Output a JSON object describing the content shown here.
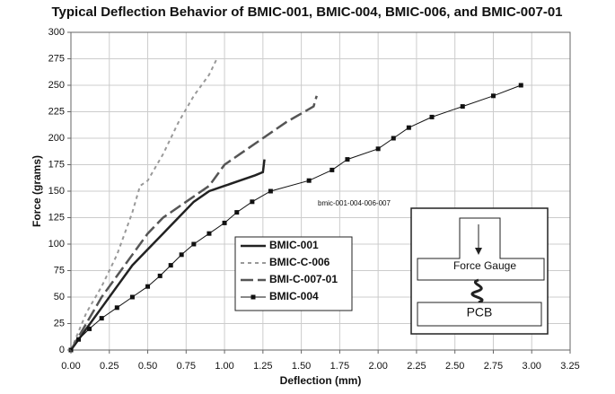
{
  "chart_data": {
    "type": "line",
    "title": "Typical Deflection Behavior of BMIC-001, BMIC-004, BMIC-006, and BMIC-007-01",
    "x_label": "Deflection (mm)",
    "y_label": "Force (grams)",
    "xlim": [
      0,
      3.25
    ],
    "ylim": [
      0,
      300
    ],
    "xticks": [
      {
        "value": 0,
        "label": "0.00"
      },
      {
        "value": 0.25,
        "label": "0.25"
      },
      {
        "value": 0.5,
        "label": "0.50"
      },
      {
        "value": 0.75,
        "label": "0.75"
      },
      {
        "value": 1,
        "label": "1.00"
      },
      {
        "value": 1.25,
        "label": "1.25"
      },
      {
        "value": 1.5,
        "label": "1.50"
      },
      {
        "value": 1.75,
        "label": "1.75"
      },
      {
        "value": 2,
        "label": "2.00"
      },
      {
        "value": 2.25,
        "label": "2.25"
      },
      {
        "value": 2.5,
        "label": "2.50"
      },
      {
        "value": 2.75,
        "label": "2.75"
      },
      {
        "value": 3,
        "label": "3.00"
      },
      {
        "value": 3.25,
        "label": "3.25"
      }
    ],
    "yticks": [
      0,
      25,
      50,
      75,
      100,
      125,
      150,
      175,
      200,
      225,
      250,
      275,
      300
    ],
    "grid": true,
    "annotation": "bmic-001-004-006-007",
    "inset_labels": [
      "Force Gauge",
      "PCB"
    ],
    "series": [
      {
        "name": "BMIC-001",
        "color": "#222",
        "width": 2.5,
        "dash": "none",
        "marker": "none",
        "x": [
          0,
          0.1,
          0.2,
          0.3,
          0.4,
          0.5,
          0.6,
          0.7,
          0.8,
          0.9,
          1.0,
          1.1,
          1.2,
          1.25,
          1.26
        ],
        "values": [
          0,
          20,
          40,
          60,
          80,
          95,
          110,
          125,
          140,
          150,
          155,
          160,
          165,
          168,
          180
        ]
      },
      {
        "name": "BMIC-C-006",
        "color": "#999",
        "width": 2,
        "dash": "4 4",
        "marker": "none",
        "x": [
          0,
          0.1,
          0.2,
          0.3,
          0.4,
          0.45,
          0.5,
          0.6,
          0.7,
          0.8,
          0.9,
          0.95
        ],
        "values": [
          0,
          35,
          60,
          90,
          130,
          155,
          160,
          185,
          215,
          240,
          260,
          275
        ]
      },
      {
        "name": "BMI-C-007-01",
        "color": "#555",
        "width": 2.5,
        "dash": "14 5",
        "marker": "none",
        "x": [
          0,
          0.1,
          0.2,
          0.3,
          0.4,
          0.5,
          0.6,
          0.75,
          0.9,
          1.0,
          1.1,
          1.25,
          1.4,
          1.58,
          1.6
        ],
        "values": [
          0,
          25,
          50,
          70,
          90,
          110,
          125,
          140,
          155,
          175,
          185,
          200,
          215,
          230,
          240
        ]
      },
      {
        "name": "BMIC-004",
        "color": "#111",
        "width": 1,
        "dash": "none",
        "marker": "square",
        "x": [
          0,
          0.05,
          0.12,
          0.2,
          0.3,
          0.4,
          0.5,
          0.58,
          0.65,
          0.72,
          0.8,
          0.9,
          1.0,
          1.08,
          1.18,
          1.3,
          1.55,
          1.7,
          1.8,
          2.0,
          2.1,
          2.2,
          2.35,
          2.55,
          2.75,
          2.93
        ],
        "values": [
          0,
          10,
          20,
          30,
          40,
          50,
          60,
          70,
          80,
          90,
          100,
          110,
          120,
          130,
          140,
          150,
          160,
          170,
          180,
          190,
          200,
          210,
          220,
          230,
          240,
          250
        ]
      }
    ]
  }
}
